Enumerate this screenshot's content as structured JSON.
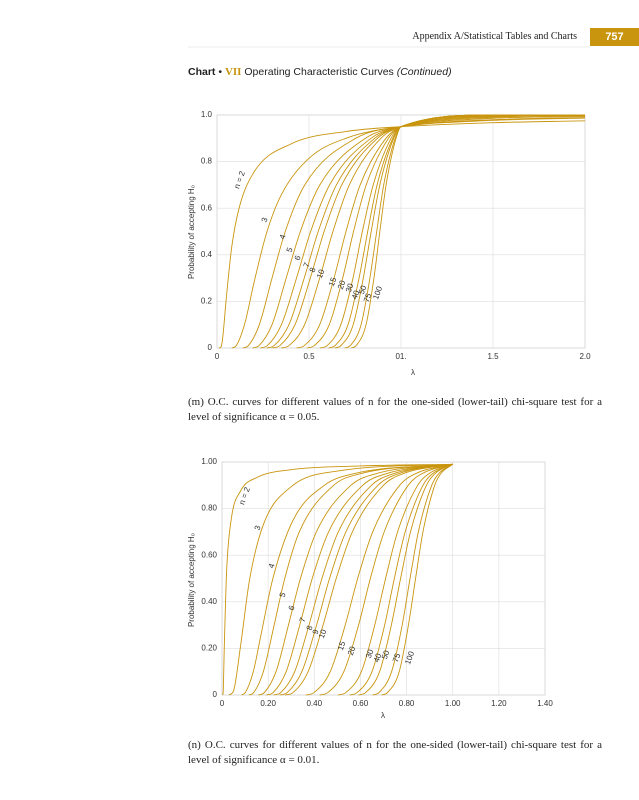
{
  "header": {
    "running_title": "Appendix A/Statistical Tables and Charts",
    "page_number": "757"
  },
  "section": {
    "label": "Chart",
    "bullet": "•",
    "number": "VII",
    "title": "Operating Characteristic Curves",
    "note": "(Continued)"
  },
  "chart_data": [
    {
      "type": "line",
      "color": "#c9950e",
      "grid": true,
      "x_label": "λ",
      "y_label": "Probability of accepting H₀",
      "xlim": [
        0,
        2
      ],
      "ylim": [
        0,
        1
      ],
      "xticks": [
        0,
        0.5,
        {
          "value": 1,
          "label": "01."
        },
        1.5,
        {
          "value": 2,
          "label": "2.0"
        }
      ],
      "yticks": [
        0,
        0.2,
        0.4,
        0.6,
        0.8,
        {
          "value": 1,
          "label": "1.0"
        }
      ],
      "caption": "(m) O.C. curves for different values of n for the one-sided (lower-tail) chi-square test for a level of significance α = 0.05.",
      "series": [
        {
          "name": "n = 2",
          "x": [
            0.01,
            0.02,
            0.03,
            0.05,
            0.08,
            0.12,
            0.2,
            0.4,
            0.7,
            1,
            1.5,
            2
          ],
          "values": [
            0,
            0.002,
            0.037,
            0.21,
            0.433,
            0.6,
            0.754,
            0.875,
            0.929,
            0.95,
            0.967,
            0.975
          ]
        },
        {
          "name": "3",
          "x": [
            0.08,
            0.1,
            0.15,
            0.2,
            0.27,
            0.35,
            0.5,
            0.7,
            1,
            1.5,
            2
          ],
          "values": [
            0,
            0.006,
            0.102,
            0.277,
            0.495,
            0.658,
            0.814,
            0.9,
            0.95,
            0.977,
            0.987
          ]
        },
        {
          "name": "4",
          "x": [
            0.14,
            0.17,
            0.23,
            0.299,
            0.371,
            0.477,
            0.754,
            1,
            1.5,
            2
          ],
          "values": [
            0,
            0.01,
            0.1,
            0.3,
            0.5,
            0.7,
            0.9,
            0.95,
            0.98,
            0.989
          ]
        },
        {
          "name": "5",
          "x": [
            0.193,
            0.228,
            0.299,
            0.376,
            0.453,
            0.559,
            0.807,
            1,
            1.5,
            2
          ],
          "values": [
            0,
            0.01,
            0.1,
            0.3,
            0.5,
            0.7,
            0.9,
            0.95,
            0.986,
            0.994
          ]
        },
        {
          "name": "6",
          "x": [
            0.235,
            0.273,
            0.35,
            0.432,
            0.509,
            0.612,
            0.837,
            1,
            1.5,
            2
          ],
          "values": [
            0,
            0.01,
            0.1,
            0.3,
            0.5,
            0.7,
            0.9,
            0.95,
            0.99,
            0.997
          ]
        },
        {
          "name": "7",
          "x": [
            0.27,
            0.31,
            0.391,
            0.474,
            0.55,
            0.649,
            0.857,
            1,
            1.5,
            2
          ],
          "values": [
            0,
            0.01,
            0.1,
            0.3,
            0.5,
            0.7,
            0.9,
            0.95,
            0.993,
            0.998
          ]
        },
        {
          "name": "8",
          "x": [
            0.3,
            0.341,
            0.424,
            0.507,
            0.582,
            0.678,
            0.872,
            1,
            1.5,
            2
          ],
          "values": [
            0,
            0.01,
            0.1,
            0.3,
            0.5,
            0.7,
            0.9,
            0.95,
            0.995,
            0.998
          ]
        },
        {
          "name": "10",
          "x": [
            0.349,
            0.391,
            0.476,
            0.558,
            0.63,
            0.719,
            0.891,
            1,
            1.5,
            2
          ],
          "values": [
            0,
            0.01,
            0.1,
            0.3,
            0.5,
            0.7,
            0.9,
            0.95,
            0.997,
            1
          ]
        },
        {
          "name": "15",
          "x": [
            0.432,
            0.474,
            0.558,
            0.636,
            0.701,
            0.778,
            0.918,
            1,
            1.5,
            2
          ],
          "values": [
            0,
            0.01,
            0.1,
            0.3,
            0.5,
            0.7,
            0.9,
            0.95,
            0.999,
            1
          ]
        },
        {
          "name": "20",
          "x": [
            0.488,
            0.528,
            0.61,
            0.683,
            0.742,
            0.811,
            0.932,
            1,
            1.5,
            2
          ],
          "values": [
            0,
            0.01,
            0.1,
            0.3,
            0.5,
            0.7,
            0.9,
            0.95,
            1,
            1
          ]
        },
        {
          "name": "30",
          "x": [
            0.56,
            0.598,
            0.673,
            0.739,
            0.79,
            0.849,
            0.946,
            1,
            1.5,
            2
          ],
          "values": [
            0,
            0.01,
            0.1,
            0.3,
            0.5,
            0.7,
            0.9,
            0.95,
            1,
            1
          ]
        },
        {
          "name": "40",
          "x": [
            0.606,
            0.641,
            0.712,
            0.772,
            0.819,
            0.87,
            0.955,
            1,
            1.5,
            2
          ],
          "values": [
            0,
            0.01,
            0.1,
            0.3,
            0.5,
            0.7,
            0.9,
            0.95,
            1,
            1
          ]
        },
        {
          "name": "50",
          "x": [
            0.64,
            0.673,
            0.74,
            0.795,
            0.838,
            0.885,
            0.96,
            1,
            1.5,
            2
          ],
          "values": [
            0,
            0.01,
            0.1,
            0.3,
            0.5,
            0.7,
            0.9,
            0.95,
            1,
            1
          ]
        },
        {
          "name": "75",
          "x": [
            0.694,
            0.724,
            0.783,
            0.831,
            0.868,
            0.906,
            0.968,
            1,
            1.5,
            2
          ],
          "values": [
            0,
            0.01,
            0.1,
            0.3,
            0.5,
            0.7,
            0.9,
            0.95,
            1,
            1
          ]
        },
        {
          "name": "100",
          "x": [
            0.729,
            0.756,
            0.81,
            0.853,
            0.885,
            0.919,
            0.973,
            1,
            1.5,
            2
          ],
          "values": [
            0,
            0.01,
            0.1,
            0.3,
            0.5,
            0.7,
            0.9,
            0.95,
            1,
            1
          ]
        }
      ]
    },
    {
      "type": "line",
      "color": "#c9950e",
      "grid": true,
      "x_label": "λ",
      "y_label": "Probability of accepting H₀",
      "xlim": [
        0,
        1.4
      ],
      "ylim": [
        0,
        1
      ],
      "xticks": [
        0,
        {
          "value": 0.2,
          "label": "0.20"
        },
        {
          "value": 0.4,
          "label": "0.40"
        },
        {
          "value": 0.6,
          "label": "0.60"
        },
        {
          "value": 0.8,
          "label": "0.80"
        },
        {
          "value": 1,
          "label": "1.00"
        },
        {
          "value": 1.2,
          "label": "1.20"
        },
        {
          "value": 1.4,
          "label": "1.40"
        }
      ],
      "yticks": [
        0,
        {
          "value": 0.2,
          "label": "0.20"
        },
        {
          "value": 0.4,
          "label": "0.40"
        },
        {
          "value": 0.6,
          "label": "0.60"
        },
        {
          "value": 0.8,
          "label": "0.80"
        },
        {
          "value": 1,
          "label": "1.00"
        }
      ],
      "caption": "(n) O.C. curves for different values of n for the one-sided (lower-tail) chi-square test for a level of significance α = 0.01.",
      "series": [
        {
          "name": "n = 2",
          "x": [
            0.003,
            0.005,
            0.01,
            0.02,
            0.04,
            0.08,
            0.15,
            0.3,
            0.6,
            1
          ],
          "values": [
            0,
            0.012,
            0.21,
            0.531,
            0.754,
            0.875,
            0.933,
            0.967,
            0.983,
            0.99
          ]
        },
        {
          "name": "3",
          "x": [
            0.03,
            0.05,
            0.08,
            0.12,
            0.18,
            0.3,
            0.5,
            1
          ],
          "values": [
            0,
            0.018,
            0.208,
            0.498,
            0.733,
            0.894,
            0.961,
            0.99
          ]
        },
        {
          "name": "4",
          "x": [
            0.085,
            0.1007,
            0.1356,
            0.1673,
            0.2205,
            0.3079,
            0.4437,
            0.5716,
            1
          ],
          "values": [
            0,
            0.01,
            0.1,
            0.25,
            0.5,
            0.75,
            0.9,
            0.95,
            0.99
          ]
        },
        {
          "name": "5",
          "x": [
            0.116,
            0.137,
            0.179,
            0.226,
            0.272,
            0.335,
            0.484,
            0.6,
            1
          ],
          "values": [
            0,
            0.01,
            0.1,
            0.3,
            0.5,
            0.7,
            0.9,
            0.95,
            0.99
          ]
        },
        {
          "name": "6",
          "x": [
            0.157,
            0.183,
            0.234,
            0.288,
            0.34,
            0.409,
            0.559,
            0.668,
            1
          ],
          "values": [
            0,
            0.01,
            0.1,
            0.3,
            0.5,
            0.7,
            0.9,
            0.95,
            0.99
          ]
        },
        {
          "name": "7",
          "x": [
            0.192,
            0.221,
            0.278,
            0.337,
            0.391,
            0.462,
            0.61,
            0.712,
            1
          ],
          "values": [
            0,
            0.01,
            0.1,
            0.3,
            0.5,
            0.7,
            0.9,
            0.95,
            0.99
          ]
        },
        {
          "name": "8",
          "x": [
            0.223,
            0.254,
            0.315,
            0.377,
            0.433,
            0.504,
            0.648,
            0.743,
            1
          ],
          "values": [
            0,
            0.01,
            0.1,
            0.3,
            0.5,
            0.7,
            0.9,
            0.95,
            0.99
          ]
        },
        {
          "name": "9",
          "x": [
            0.25,
            0.282,
            0.346,
            0.41,
            0.466,
            0.537,
            0.676,
            0.766,
            1
          ],
          "values": [
            0,
            0.01,
            0.1,
            0.3,
            0.5,
            0.7,
            0.9,
            0.95,
            0.99
          ]
        },
        {
          "name": "10",
          "x": [
            0.274,
            0.307,
            0.373,
            0.438,
            0.495,
            0.565,
            0.7,
            0.785,
            1
          ],
          "values": [
            0,
            0.01,
            0.1,
            0.3,
            0.5,
            0.7,
            0.9,
            0.95,
            0.99
          ]
        },
        {
          "name": "15",
          "x": [
            0.363,
            0.398,
            0.469,
            0.534,
            0.588,
            0.653,
            0.77,
            0.839,
            1
          ],
          "values": [
            0,
            0.01,
            0.1,
            0.3,
            0.5,
            0.7,
            0.9,
            0.95,
            0.99
          ]
        },
        {
          "name": "20",
          "x": [
            0.423,
            0.458,
            0.528,
            0.592,
            0.643,
            0.703,
            0.807,
            0.867,
            1
          ],
          "values": [
            0,
            0.01,
            0.1,
            0.3,
            0.5,
            0.7,
            0.9,
            0.95,
            0.99
          ]
        },
        {
          "name": "30",
          "x": [
            0.502,
            0.536,
            0.604,
            0.662,
            0.709,
            0.761,
            0.848,
            0.897,
            1
          ],
          "values": [
            0,
            0.01,
            0.1,
            0.3,
            0.5,
            0.7,
            0.9,
            0.95,
            0.99
          ]
        },
        {
          "name": "40",
          "x": [
            0.553,
            0.585,
            0.65,
            0.705,
            0.747,
            0.794,
            0.871,
            0.913,
            1
          ],
          "values": [
            0,
            0.01,
            0.1,
            0.3,
            0.5,
            0.7,
            0.9,
            0.95,
            0.99
          ]
        },
        {
          "name": "50",
          "x": [
            0.591,
            0.622,
            0.683,
            0.734,
            0.774,
            0.817,
            0.886,
            0.923,
            1
          ],
          "values": [
            0,
            0.01,
            0.1,
            0.3,
            0.5,
            0.7,
            0.9,
            0.95,
            0.99
          ]
        },
        {
          "name": "75",
          "x": [
            0.652,
            0.68,
            0.735,
            0.781,
            0.815,
            0.851,
            0.909,
            0.939,
            1
          ],
          "values": [
            0,
            0.01,
            0.1,
            0.3,
            0.5,
            0.7,
            0.9,
            0.95,
            0.99
          ]
        },
        {
          "name": "100",
          "x": [
            0.691,
            0.717,
            0.768,
            0.808,
            0.839,
            0.871,
            0.922,
            0.948,
            1
          ],
          "values": [
            0,
            0.01,
            0.1,
            0.3,
            0.5,
            0.7,
            0.9,
            0.95,
            0.99
          ]
        }
      ]
    }
  ]
}
